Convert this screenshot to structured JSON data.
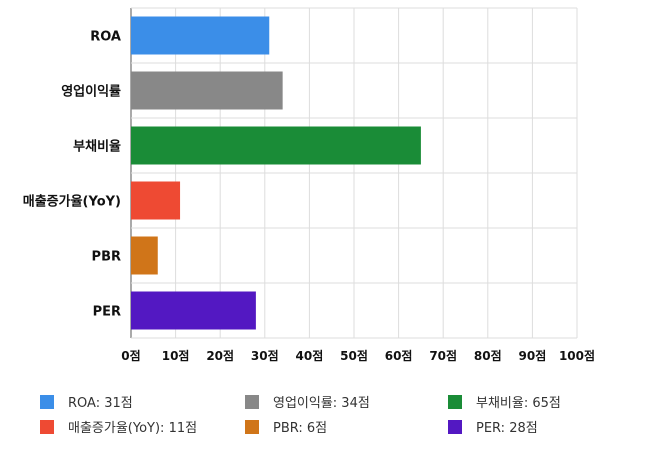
{
  "chart_data": {
    "type": "bar",
    "orientation": "horizontal",
    "categories": [
      "ROA",
      "영업이익률",
      "부채비율",
      "매출증가율(YoY)",
      "PBR",
      "PER"
    ],
    "values": [
      31,
      34,
      65,
      11,
      6,
      28
    ],
    "colors": [
      "#3b8ee8",
      "#888888",
      "#1a8c37",
      "#ee4a33",
      "#d07519",
      "#5318c2"
    ],
    "xlim": [
      0,
      100
    ],
    "x_ticks": [
      0,
      10,
      20,
      30,
      40,
      50,
      60,
      70,
      80,
      90,
      100
    ],
    "tick_suffix": "점",
    "grid": true,
    "legend_position": "bottom",
    "legend": [
      {
        "label": "ROA: 31점",
        "color": "#3b8ee8"
      },
      {
        "label": "영업이익률: 34점",
        "color": "#888888"
      },
      {
        "label": "부채비율: 65점",
        "color": "#1a8c37"
      },
      {
        "label": "매출증가율(YoY): 11점",
        "color": "#ee4a33"
      },
      {
        "label": "PBR: 6점",
        "color": "#d07519"
      },
      {
        "label": "PER: 28점",
        "color": "#5318c2"
      }
    ]
  }
}
